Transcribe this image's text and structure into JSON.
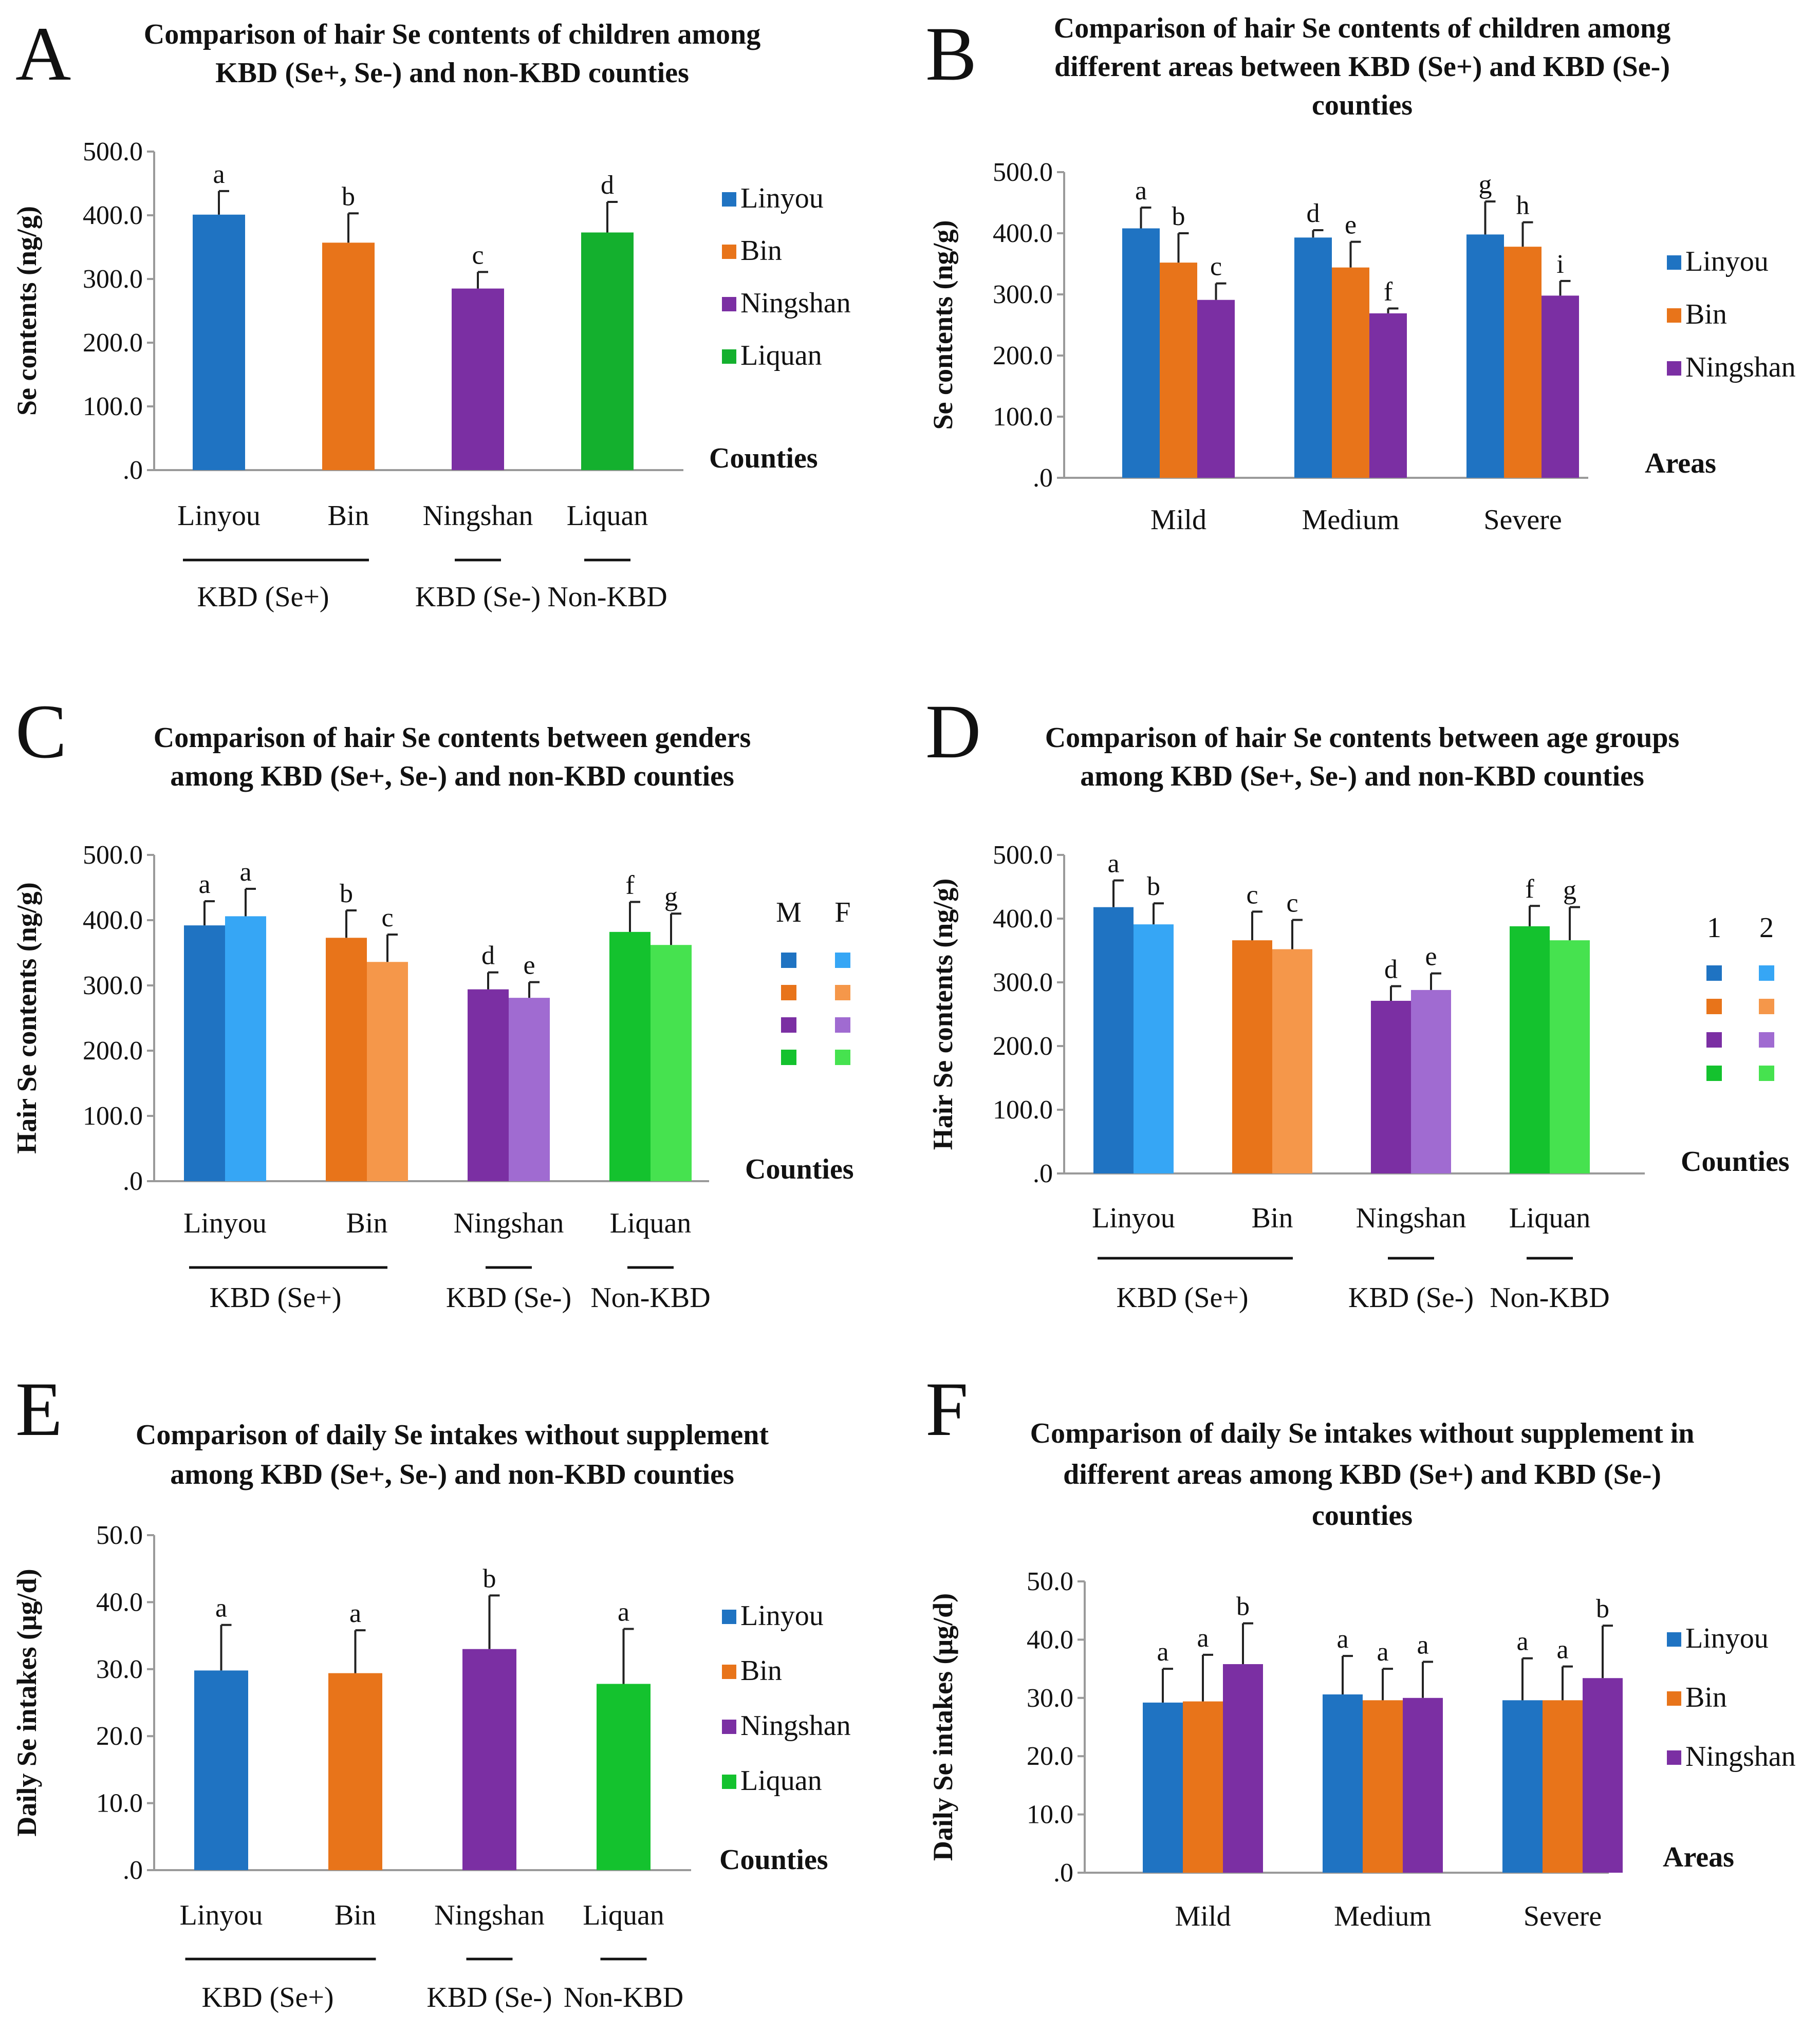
{
  "chart_data": [
    {
      "id": "A",
      "type": "bar",
      "panel_letter": "A",
      "title_lines": [
        "Comparison of hair Se contents of children among",
        "KBD (Se+, Se-) and non-KBD counties"
      ],
      "ylabel": "Se  contents (ng/g)",
      "xlabel": "Counties",
      "ylim": [
        0,
        500
      ],
      "yticks": [
        ".0",
        "100.0",
        "200.0",
        "300.0",
        "400.0",
        "500.0"
      ],
      "categories": [
        "Linyou",
        "Bin",
        "Ningshan",
        "Liquan"
      ],
      "colors": [
        "#1f73c2",
        "#e8741a",
        "#7b2fa3",
        "#14b02e"
      ],
      "values": [
        401,
        357,
        285,
        373
      ],
      "errors": [
        37,
        46,
        26,
        48
      ],
      "letters": [
        "a",
        "b",
        "c",
        "d"
      ],
      "groups": [
        {
          "label": "KBD (Se+)",
          "span": [
            0,
            1
          ]
        },
        {
          "label": "KBD (Se-)",
          "span": [
            2,
            2
          ]
        },
        {
          "label": "Non-KBD",
          "span": [
            3,
            3
          ]
        }
      ],
      "legend": [
        {
          "label": "Linyou",
          "color": "#1f73c2"
        },
        {
          "label": "Bin",
          "color": "#e8741a"
        },
        {
          "label": "Ningshan",
          "color": "#7b2fa3"
        },
        {
          "label": "Liquan",
          "color": "#14b02e"
        }
      ]
    },
    {
      "id": "B",
      "type": "grouped_bar",
      "panel_letter": "B",
      "title_lines": [
        "Comparison of hair Se contents of children among",
        "different areas between KBD (Se+) and KBD (Se-)",
        "counties"
      ],
      "ylabel": "Se contents (ng/g)",
      "xlabel": "Areas",
      "ylim": [
        0,
        500
      ],
      "yticks": [
        ".0",
        "100.0",
        "200.0",
        "300.0",
        "400.0",
        "500.0"
      ],
      "categories": [
        "Mild",
        "Medium",
        "Severe"
      ],
      "series": [
        {
          "name": "Linyou",
          "color": "#1f73c2",
          "values": [
            408,
            393,
            398
          ],
          "errors": [
            34,
            12,
            54
          ],
          "letters": [
            "a",
            "d",
            "g"
          ]
        },
        {
          "name": "Bin",
          "color": "#e8741a",
          "values": [
            352,
            344,
            378
          ],
          "errors": [
            48,
            42,
            40
          ],
          "letters": [
            "b",
            "e",
            "h"
          ]
        },
        {
          "name": "Ningshan",
          "color": "#7b2fa3",
          "values": [
            291,
            269,
            298
          ],
          "errors": [
            27,
            8,
            24
          ],
          "letters": [
            "c",
            "f",
            "i"
          ]
        }
      ],
      "legend": [
        {
          "label": "Linyou",
          "color": "#1f73c2"
        },
        {
          "label": "Bin",
          "color": "#e8741a"
        },
        {
          "label": "Ningshan",
          "color": "#7b2fa3"
        }
      ]
    },
    {
      "id": "C",
      "type": "grouped_bar",
      "panel_letter": "C",
      "title_lines": [
        "Comparison of hair Se contents between genders",
        "among KBD (Se+, Se-) and non-KBD counties"
      ],
      "ylabel": "Hair Se contents (ng/g)",
      "xlabel": "Counties",
      "ylim": [
        0,
        500
      ],
      "yticks": [
        ".0",
        "100.0",
        "200.0",
        "300.0",
        "400.0",
        "500.0"
      ],
      "categories": [
        "Linyou",
        "Bin",
        "Ningshan",
        "Liquan"
      ],
      "pairs": [
        {
          "values": [
            392,
            406
          ],
          "errors": [
            37,
            42
          ],
          "letters": [
            "a",
            "a"
          ],
          "colors": [
            "#1f73c2",
            "#36a6f5"
          ]
        },
        {
          "values": [
            373,
            336
          ],
          "errors": [
            42,
            42
          ],
          "letters": [
            "b",
            "c"
          ],
          "colors": [
            "#e8741a",
            "#f5974a"
          ]
        },
        {
          "values": [
            294,
            281
          ],
          "errors": [
            26,
            24
          ],
          "letters": [
            "d",
            "e"
          ],
          "colors": [
            "#7b2fa3",
            "#a06bd1"
          ]
        },
        {
          "values": [
            382,
            362
          ],
          "errors": [
            46,
            48
          ],
          "letters": [
            "f",
            "g"
          ],
          "colors": [
            "#14c22e",
            "#46e24f"
          ]
        }
      ],
      "groups": [
        {
          "label": "KBD (Se+)",
          "span": [
            0,
            1
          ]
        },
        {
          "label": "KBD (Se-)",
          "span": [
            2,
            2
          ]
        },
        {
          "label": "Non-KBD",
          "span": [
            3,
            3
          ]
        }
      ],
      "legend_headers": [
        "M",
        "F"
      ],
      "legend_colors": [
        [
          "#1f73c2",
          "#36a6f5"
        ],
        [
          "#e8741a",
          "#f5974a"
        ],
        [
          "#7b2fa3",
          "#a06bd1"
        ],
        [
          "#14c22e",
          "#46e24f"
        ]
      ]
    },
    {
      "id": "D",
      "type": "grouped_bar",
      "panel_letter": "D",
      "title_lines": [
        "Comparison of hair Se contents between age groups",
        "among KBD (Se+, Se-) and non-KBD counties"
      ],
      "ylabel": "Hair Se contents (ng/g)",
      "xlabel": "Counties",
      "ylim": [
        0,
        500
      ],
      "yticks": [
        ".0",
        "100.0",
        "200.0",
        "300.0",
        "400.0",
        "500.0"
      ],
      "categories": [
        "Linyou",
        "Bin",
        "Ningshan",
        "Liquan"
      ],
      "pairs": [
        {
          "values": [
            418,
            391
          ],
          "errors": [
            42,
            33
          ],
          "letters": [
            "a",
            "b"
          ],
          "colors": [
            "#1f73c2",
            "#36a6f5"
          ]
        },
        {
          "values": [
            366,
            352
          ],
          "errors": [
            45,
            46
          ],
          "letters": [
            "c",
            "c"
          ],
          "colors": [
            "#e8741a",
            "#f5974a"
          ]
        },
        {
          "values": [
            271,
            288
          ],
          "errors": [
            23,
            26
          ],
          "letters": [
            "d",
            "e"
          ],
          "colors": [
            "#7b2fa3",
            "#a06bd1"
          ]
        },
        {
          "values": [
            388,
            366
          ],
          "errors": [
            32,
            52
          ],
          "letters": [
            "f",
            "g"
          ],
          "colors": [
            "#14c22e",
            "#46e24f"
          ]
        }
      ],
      "groups": [
        {
          "label": "KBD (Se+)",
          "span": [
            0,
            1
          ]
        },
        {
          "label": "KBD (Se-)",
          "span": [
            2,
            2
          ]
        },
        {
          "label": "Non-KBD",
          "span": [
            3,
            3
          ]
        }
      ],
      "legend_headers": [
        "1",
        "2"
      ],
      "legend_colors": [
        [
          "#1f73c2",
          "#36a6f5"
        ],
        [
          "#e8741a",
          "#f5974a"
        ],
        [
          "#7b2fa3",
          "#a06bd1"
        ],
        [
          "#14c22e",
          "#46e24f"
        ]
      ]
    },
    {
      "id": "E",
      "type": "bar",
      "panel_letter": "E",
      "title_lines": [
        "Comparison of daily Se intakes without supplement",
        "among KBD (Se+, Se-) and non-KBD counties"
      ],
      "ylabel": "Daily Se intakes (μg/d)",
      "xlabel": "Counties",
      "ylim": [
        0,
        50
      ],
      "yticks": [
        ".0",
        "10.0",
        "20.0",
        "30.0",
        "40.0",
        "50.0"
      ],
      "categories": [
        "Linyou",
        "Bin",
        "Ningshan",
        "Liquan"
      ],
      "colors": [
        "#1f73c2",
        "#e8741a",
        "#7b2fa3",
        "#14c22e"
      ],
      "values": [
        29.8,
        29.4,
        33.0,
        27.8
      ],
      "errors": [
        6.8,
        6.4,
        8.0,
        8.2
      ],
      "letters": [
        "a",
        "a",
        "b",
        "a"
      ],
      "groups": [
        {
          "label": "KBD (Se+)",
          "span": [
            0,
            1
          ]
        },
        {
          "label": "KBD (Se-)",
          "span": [
            2,
            2
          ]
        },
        {
          "label": "Non-KBD",
          "span": [
            3,
            3
          ]
        }
      ],
      "legend": [
        {
          "label": "Linyou",
          "color": "#1f73c2"
        },
        {
          "label": "Bin",
          "color": "#e8741a"
        },
        {
          "label": "Ningshan",
          "color": "#7b2fa3"
        },
        {
          "label": "Liquan",
          "color": "#14c22e"
        }
      ]
    },
    {
      "id": "F",
      "type": "grouped_bar",
      "panel_letter": "F",
      "title_lines": [
        "Comparison of daily Se intakes without supplement in",
        "different areas among KBD (Se+) and KBD (Se-)",
        "counties"
      ],
      "ylabel": "Daily Se intakes (μg/d)",
      "xlabel": "Areas",
      "ylim": [
        0,
        50
      ],
      "yticks": [
        ".0",
        "10.0",
        "20.0",
        "30.0",
        "40.0",
        "50.0"
      ],
      "categories": [
        "Mild",
        "Medium",
        "Severe"
      ],
      "series": [
        {
          "name": "Linyou",
          "color": "#1f73c2",
          "values": [
            29.2,
            30.6,
            29.6
          ],
          "errors": [
            5.8,
            6.6,
            7.2
          ],
          "letters": [
            "a",
            "a",
            "a"
          ]
        },
        {
          "name": "Bin",
          "color": "#e8741a",
          "values": [
            29.4,
            29.6,
            29.6
          ],
          "errors": [
            8.0,
            5.4,
            5.8
          ],
          "letters": [
            "a",
            "a",
            "a"
          ]
        },
        {
          "name": "Ningshan",
          "color": "#7b2fa3",
          "values": [
            35.8,
            30.0,
            33.4
          ],
          "errors": [
            7.0,
            6.2,
            9.0
          ],
          "letters": [
            "b",
            "a",
            "b"
          ]
        }
      ],
      "legend": [
        {
          "label": "Linyou",
          "color": "#1f73c2"
        },
        {
          "label": "Bin",
          "color": "#e8741a"
        },
        {
          "label": "Ningshan",
          "color": "#7b2fa3"
        }
      ]
    }
  ]
}
